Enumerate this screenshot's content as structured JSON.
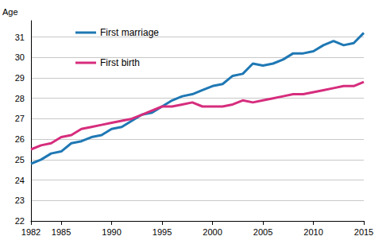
{
  "chart_data": {
    "type": "line",
    "y_label": "Age",
    "x": [
      1982,
      1983,
      1984,
      1985,
      1986,
      1987,
      1988,
      1989,
      1990,
      1991,
      1992,
      1993,
      1994,
      1995,
      1996,
      1997,
      1998,
      1999,
      2000,
      2001,
      2002,
      2003,
      2004,
      2005,
      2006,
      2007,
      2008,
      2009,
      2010,
      2011,
      2012,
      2013,
      2014,
      2015
    ],
    "series": [
      {
        "name": "First marriage",
        "color": "#1f78b4",
        "values": [
          24.8,
          25.0,
          25.3,
          25.4,
          25.8,
          25.9,
          26.1,
          26.2,
          26.5,
          26.6,
          26.9,
          27.2,
          27.3,
          27.6,
          27.9,
          28.1,
          28.2,
          28.4,
          28.6,
          28.7,
          29.1,
          29.2,
          29.7,
          29.6,
          29.7,
          29.9,
          30.2,
          30.2,
          30.3,
          30.6,
          30.8,
          30.6,
          30.7,
          31.2
        ]
      },
      {
        "name": "First birth",
        "color": "#d62d7d",
        "values": [
          25.5,
          25.7,
          25.8,
          26.1,
          26.2,
          26.5,
          26.6,
          26.7,
          26.8,
          26.9,
          27.0,
          27.2,
          27.4,
          27.6,
          27.6,
          27.7,
          27.8,
          27.6,
          27.6,
          27.6,
          27.7,
          27.9,
          27.8,
          27.9,
          28.0,
          28.1,
          28.2,
          28.2,
          28.3,
          28.4,
          28.5,
          28.6,
          28.6,
          28.8
        ]
      }
    ],
    "xlim": [
      1982,
      2015
    ],
    "xticks": [
      1982,
      1985,
      1990,
      1995,
      2000,
      2005,
      2010,
      2015
    ],
    "ylim": [
      22,
      31.8
    ],
    "yticks": [
      22,
      23,
      24,
      25,
      26,
      27,
      28,
      29,
      30,
      31
    ],
    "grid": true,
    "legend": "upper left"
  }
}
